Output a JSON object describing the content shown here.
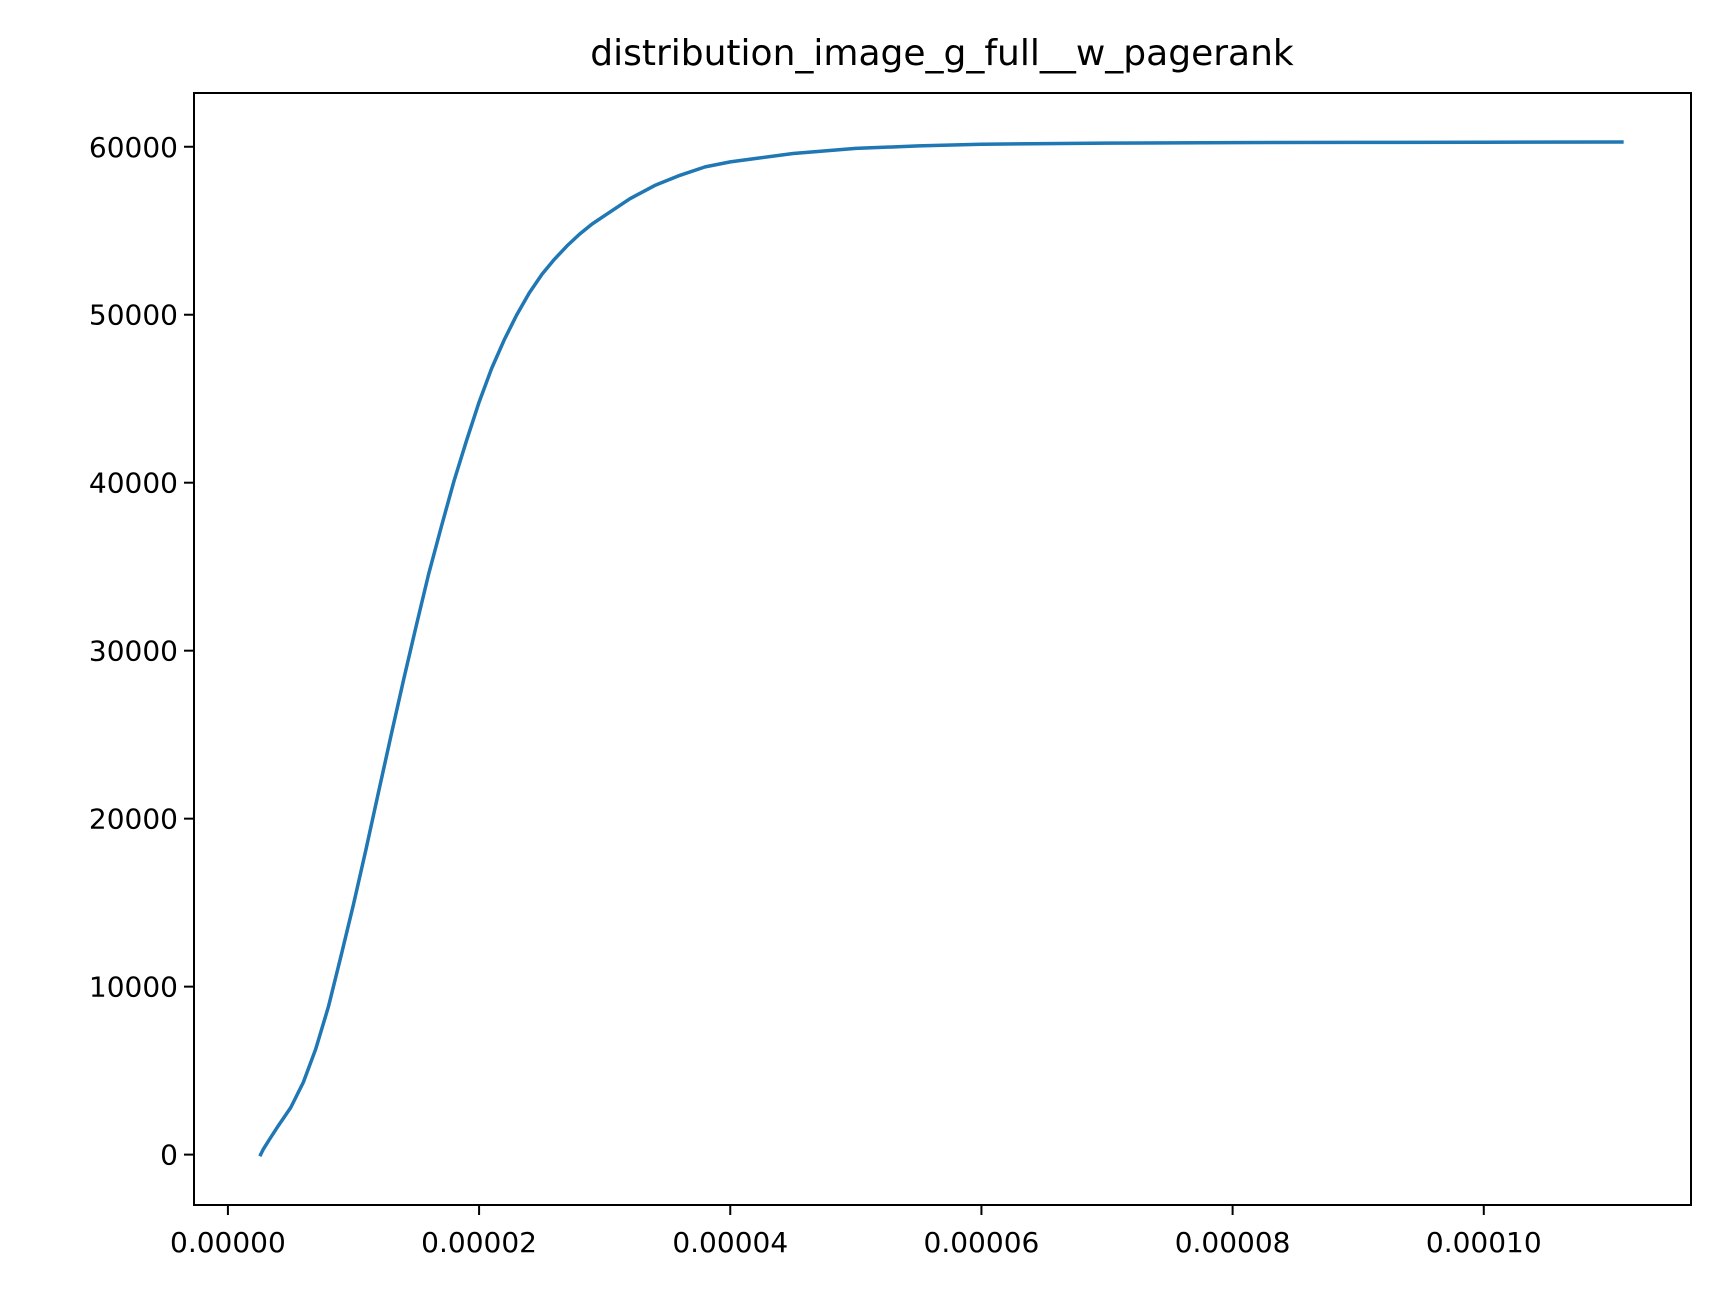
{
  "chart_data": {
    "type": "line",
    "title": "distribution_image_g_full__w_pagerank",
    "xlabel": "",
    "ylabel": "",
    "xlim": [
      -2.7e-06,
      0.0001165
    ],
    "ylim": [
      -3000,
      63200
    ],
    "grid": false,
    "x_ticks": [
      {
        "value": 0.0,
        "label": "0.00000"
      },
      {
        "value": 2e-05,
        "label": "0.00002"
      },
      {
        "value": 4e-05,
        "label": "0.00004"
      },
      {
        "value": 6e-05,
        "label": "0.00006"
      },
      {
        "value": 8e-05,
        "label": "0.00008"
      },
      {
        "value": 0.0001,
        "label": "0.00010"
      }
    ],
    "y_ticks": [
      {
        "value": 0,
        "label": "0"
      },
      {
        "value": 10000,
        "label": "10000"
      },
      {
        "value": 20000,
        "label": "20000"
      },
      {
        "value": 30000,
        "label": "30000"
      },
      {
        "value": 40000,
        "label": "40000"
      },
      {
        "value": 50000,
        "label": "50000"
      },
      {
        "value": 60000,
        "label": "60000"
      }
    ],
    "series": [
      {
        "color": "#1f77b4",
        "x": [
          2.6e-06,
          2.8e-06,
          3.3e-06,
          4e-06,
          5e-06,
          6e-06,
          7e-06,
          8e-06,
          9e-06,
          1e-05,
          1.1e-05,
          1.2e-05,
          1.3e-05,
          1.4e-05,
          1.5e-05,
          1.6e-05,
          1.7e-05,
          1.8e-05,
          1.9e-05,
          2e-05,
          2.1e-05,
          2.2e-05,
          2.3e-05,
          2.4e-05,
          2.5e-05,
          2.6e-05,
          2.7e-05,
          2.8e-05,
          2.9e-05,
          3e-05,
          3.2e-05,
          3.4e-05,
          3.6e-05,
          3.8e-05,
          4e-05,
          4.2e-05,
          4.5e-05,
          5e-05,
          5.5e-05,
          6e-05,
          7e-05,
          8e-05,
          9e-05,
          0.0001,
          0.000111
        ],
        "y": [
          0,
          300,
          900,
          1700,
          2800,
          4300,
          6300,
          8800,
          11800,
          14900,
          18200,
          21600,
          25000,
          28300,
          31500,
          34600,
          37400,
          40100,
          42500,
          44800,
          46800,
          48500,
          50000,
          51300,
          52400,
          53300,
          54100,
          54800,
          55400,
          55900,
          56900,
          57700,
          58300,
          58800,
          59100,
          59300,
          59600,
          59900,
          60050,
          60150,
          60220,
          60250,
          60260,
          60270,
          60280
        ]
      }
    ]
  }
}
